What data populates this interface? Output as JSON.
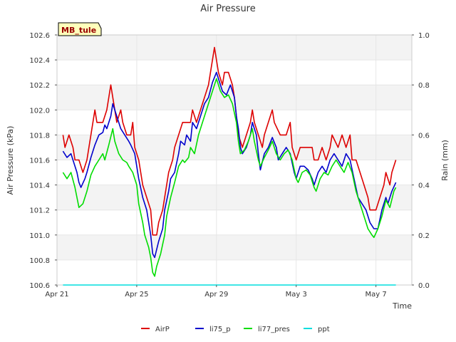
{
  "chart_data": {
    "type": "line",
    "title": "Air Pressure",
    "station_label": "MB_tule",
    "xlabel": "Time",
    "ylabel_left": "Air Pressure (kPa)",
    "ylabel_right": "Rain (mm)",
    "xlim": [
      0,
      17.8
    ],
    "ylim_left": [
      100.6,
      102.6
    ],
    "ylim_right": [
      0.0,
      1.0
    ],
    "x_ticks": [
      {
        "x": 0,
        "label": "Apr 21"
      },
      {
        "x": 4,
        "label": "Apr 25"
      },
      {
        "x": 8,
        "label": "Apr 29"
      },
      {
        "x": 12,
        "label": "May 3"
      },
      {
        "x": 16,
        "label": "May 7"
      }
    ],
    "y_ticks_left": [
      "100.6",
      "100.8",
      "101.0",
      "101.2",
      "101.4",
      "101.6",
      "101.8",
      "102.0",
      "102.2",
      "102.4",
      "102.6"
    ],
    "y_ticks_right": [
      "0.0",
      "0.2",
      "0.4",
      "0.6",
      "0.8",
      "1.0"
    ],
    "legend_position": "bottom-center",
    "series": [
      {
        "name": "AirP",
        "color": "#dd0000",
        "axis": "left",
        "points": [
          [
            0.3,
            101.8
          ],
          [
            0.4,
            101.7
          ],
          [
            0.6,
            101.8
          ],
          [
            0.8,
            101.7
          ],
          [
            0.9,
            101.6
          ],
          [
            1.1,
            101.6
          ],
          [
            1.3,
            101.5
          ],
          [
            1.5,
            101.6
          ],
          [
            1.6,
            101.7
          ],
          [
            1.8,
            101.9
          ],
          [
            1.9,
            102.0
          ],
          [
            2.0,
            101.9
          ],
          [
            2.3,
            101.9
          ],
          [
            2.5,
            102.0
          ],
          [
            2.6,
            102.1
          ],
          [
            2.7,
            102.2
          ],
          [
            2.8,
            102.1
          ],
          [
            3.0,
            101.9
          ],
          [
            3.2,
            102.0
          ],
          [
            3.3,
            101.9
          ],
          [
            3.5,
            101.8
          ],
          [
            3.7,
            101.8
          ],
          [
            3.8,
            101.9
          ],
          [
            3.9,
            101.7
          ],
          [
            4.1,
            101.6
          ],
          [
            4.2,
            101.5
          ],
          [
            4.3,
            101.4
          ],
          [
            4.5,
            101.3
          ],
          [
            4.7,
            101.2
          ],
          [
            4.8,
            101.0
          ],
          [
            5.0,
            101.0
          ],
          [
            5.1,
            101.1
          ],
          [
            5.3,
            101.2
          ],
          [
            5.4,
            101.3
          ],
          [
            5.6,
            101.5
          ],
          [
            5.8,
            101.6
          ],
          [
            5.9,
            101.7
          ],
          [
            6.1,
            101.8
          ],
          [
            6.3,
            101.9
          ],
          [
            6.5,
            101.9
          ],
          [
            6.7,
            101.9
          ],
          [
            6.8,
            102.0
          ],
          [
            7.0,
            101.9
          ],
          [
            7.2,
            102.0
          ],
          [
            7.4,
            102.1
          ],
          [
            7.6,
            102.2
          ],
          [
            7.7,
            102.3
          ],
          [
            7.8,
            102.4
          ],
          [
            7.9,
            102.5
          ],
          [
            8.1,
            102.3
          ],
          [
            8.3,
            102.2
          ],
          [
            8.4,
            102.3
          ],
          [
            8.6,
            102.3
          ],
          [
            8.8,
            102.2
          ],
          [
            8.9,
            102.1
          ],
          [
            9.1,
            101.8
          ],
          [
            9.3,
            101.7
          ],
          [
            9.5,
            101.8
          ],
          [
            9.7,
            101.9
          ],
          [
            9.8,
            102.0
          ],
          [
            9.9,
            101.9
          ],
          [
            10.1,
            101.8
          ],
          [
            10.3,
            101.7
          ],
          [
            10.4,
            101.8
          ],
          [
            10.6,
            101.9
          ],
          [
            10.8,
            102.0
          ],
          [
            10.9,
            101.9
          ],
          [
            11.2,
            101.8
          ],
          [
            11.5,
            101.8
          ],
          [
            11.7,
            101.9
          ],
          [
            11.8,
            101.7
          ],
          [
            12.0,
            101.6
          ],
          [
            12.2,
            101.7
          ],
          [
            12.5,
            101.7
          ],
          [
            12.8,
            101.7
          ],
          [
            12.9,
            101.6
          ],
          [
            13.1,
            101.6
          ],
          [
            13.3,
            101.7
          ],
          [
            13.5,
            101.6
          ],
          [
            13.7,
            101.7
          ],
          [
            13.8,
            101.8
          ],
          [
            14.1,
            101.7
          ],
          [
            14.3,
            101.8
          ],
          [
            14.5,
            101.7
          ],
          [
            14.7,
            101.8
          ],
          [
            14.8,
            101.6
          ],
          [
            15.0,
            101.6
          ],
          [
            15.2,
            101.5
          ],
          [
            15.4,
            101.4
          ],
          [
            15.6,
            101.3
          ],
          [
            15.7,
            101.2
          ],
          [
            15.9,
            101.2
          ],
          [
            16.0,
            101.2
          ],
          [
            16.2,
            101.3
          ],
          [
            16.4,
            101.4
          ],
          [
            16.5,
            101.5
          ],
          [
            16.7,
            101.4
          ],
          [
            16.8,
            101.5
          ],
          [
            17.0,
            101.6
          ]
        ]
      },
      {
        "name": "li75_p",
        "color": "#0000cc",
        "axis": "left",
        "points": [
          [
            0.3,
            101.67
          ],
          [
            0.5,
            101.62
          ],
          [
            0.7,
            101.65
          ],
          [
            0.9,
            101.55
          ],
          [
            1.0,
            101.5
          ],
          [
            1.1,
            101.42
          ],
          [
            1.2,
            101.38
          ],
          [
            1.4,
            101.45
          ],
          [
            1.5,
            101.5
          ],
          [
            1.7,
            101.62
          ],
          [
            1.9,
            101.72
          ],
          [
            2.1,
            101.8
          ],
          [
            2.3,
            101.82
          ],
          [
            2.4,
            101.88
          ],
          [
            2.5,
            101.85
          ],
          [
            2.7,
            101.95
          ],
          [
            2.8,
            102.05
          ],
          [
            3.0,
            101.95
          ],
          [
            3.2,
            101.85
          ],
          [
            3.4,
            101.8
          ],
          [
            3.6,
            101.75
          ],
          [
            3.7,
            101.72
          ],
          [
            3.9,
            101.65
          ],
          [
            4.1,
            101.45
          ],
          [
            4.3,
            101.3
          ],
          [
            4.5,
            101.2
          ],
          [
            4.6,
            101.1
          ],
          [
            4.7,
            101.0
          ],
          [
            4.8,
            100.85
          ],
          [
            4.9,
            100.82
          ],
          [
            5.1,
            100.95
          ],
          [
            5.3,
            101.05
          ],
          [
            5.4,
            101.2
          ],
          [
            5.6,
            101.35
          ],
          [
            5.7,
            101.45
          ],
          [
            5.9,
            101.5
          ],
          [
            6.1,
            101.65
          ],
          [
            6.2,
            101.75
          ],
          [
            6.4,
            101.72
          ],
          [
            6.5,
            101.8
          ],
          [
            6.7,
            101.75
          ],
          [
            6.8,
            101.9
          ],
          [
            7.0,
            101.85
          ],
          [
            7.2,
            101.95
          ],
          [
            7.4,
            102.05
          ],
          [
            7.6,
            102.1
          ],
          [
            7.8,
            102.22
          ],
          [
            8.0,
            102.3
          ],
          [
            8.1,
            102.25
          ],
          [
            8.3,
            102.15
          ],
          [
            8.5,
            102.12
          ],
          [
            8.7,
            102.2
          ],
          [
            8.9,
            102.1
          ],
          [
            9.0,
            101.95
          ],
          [
            9.1,
            101.85
          ],
          [
            9.2,
            101.7
          ],
          [
            9.3,
            101.65
          ],
          [
            9.5,
            101.7
          ],
          [
            9.7,
            101.8
          ],
          [
            9.8,
            101.9
          ],
          [
            10.0,
            101.8
          ],
          [
            10.1,
            101.65
          ],
          [
            10.2,
            101.52
          ],
          [
            10.4,
            101.65
          ],
          [
            10.6,
            101.7
          ],
          [
            10.8,
            101.78
          ],
          [
            11.0,
            101.7
          ],
          [
            11.1,
            101.6
          ],
          [
            11.3,
            101.65
          ],
          [
            11.5,
            101.7
          ],
          [
            11.7,
            101.65
          ],
          [
            11.9,
            101.5
          ],
          [
            12.0,
            101.45
          ],
          [
            12.2,
            101.55
          ],
          [
            12.4,
            101.55
          ],
          [
            12.6,
            101.52
          ],
          [
            12.8,
            101.45
          ],
          [
            12.9,
            101.4
          ],
          [
            13.1,
            101.5
          ],
          [
            13.3,
            101.55
          ],
          [
            13.5,
            101.5
          ],
          [
            13.7,
            101.6
          ],
          [
            13.9,
            101.65
          ],
          [
            14.1,
            101.6
          ],
          [
            14.3,
            101.55
          ],
          [
            14.5,
            101.65
          ],
          [
            14.7,
            101.6
          ],
          [
            14.9,
            101.45
          ],
          [
            15.1,
            101.3
          ],
          [
            15.3,
            101.25
          ],
          [
            15.5,
            101.2
          ],
          [
            15.7,
            101.1
          ],
          [
            15.9,
            101.05
          ],
          [
            16.1,
            101.05
          ],
          [
            16.3,
            101.2
          ],
          [
            16.5,
            101.3
          ],
          [
            16.6,
            101.25
          ],
          [
            16.8,
            101.35
          ],
          [
            17.0,
            101.42
          ]
        ]
      },
      {
        "name": "li77_pres",
        "color": "#00dd00",
        "axis": "left",
        "points": [
          [
            0.3,
            101.5
          ],
          [
            0.5,
            101.45
          ],
          [
            0.7,
            101.5
          ],
          [
            0.9,
            101.38
          ],
          [
            1.0,
            101.3
          ],
          [
            1.1,
            101.22
          ],
          [
            1.3,
            101.25
          ],
          [
            1.5,
            101.35
          ],
          [
            1.7,
            101.48
          ],
          [
            1.9,
            101.55
          ],
          [
            2.1,
            101.6
          ],
          [
            2.3,
            101.65
          ],
          [
            2.4,
            101.6
          ],
          [
            2.6,
            101.72
          ],
          [
            2.8,
            101.85
          ],
          [
            2.9,
            101.75
          ],
          [
            3.1,
            101.65
          ],
          [
            3.3,
            101.6
          ],
          [
            3.5,
            101.58
          ],
          [
            3.6,
            101.55
          ],
          [
            3.8,
            101.5
          ],
          [
            4.0,
            101.4
          ],
          [
            4.1,
            101.25
          ],
          [
            4.3,
            101.1
          ],
          [
            4.4,
            101.0
          ],
          [
            4.6,
            100.9
          ],
          [
            4.7,
            100.82
          ],
          [
            4.8,
            100.7
          ],
          [
            4.9,
            100.67
          ],
          [
            5.0,
            100.75
          ],
          [
            5.2,
            100.85
          ],
          [
            5.4,
            101.0
          ],
          [
            5.5,
            101.15
          ],
          [
            5.7,
            101.3
          ],
          [
            5.9,
            101.42
          ],
          [
            6.1,
            101.55
          ],
          [
            6.3,
            101.6
          ],
          [
            6.4,
            101.58
          ],
          [
            6.6,
            101.62
          ],
          [
            6.7,
            101.7
          ],
          [
            6.9,
            101.65
          ],
          [
            7.1,
            101.8
          ],
          [
            7.3,
            101.9
          ],
          [
            7.5,
            102.0
          ],
          [
            7.7,
            102.1
          ],
          [
            7.9,
            102.2
          ],
          [
            8.0,
            102.25
          ],
          [
            8.2,
            102.15
          ],
          [
            8.4,
            102.1
          ],
          [
            8.6,
            102.12
          ],
          [
            8.8,
            102.05
          ],
          [
            9.0,
            101.9
          ],
          [
            9.1,
            101.75
          ],
          [
            9.2,
            101.65
          ],
          [
            9.4,
            101.68
          ],
          [
            9.6,
            101.75
          ],
          [
            9.8,
            101.85
          ],
          [
            9.9,
            101.75
          ],
          [
            10.1,
            101.6
          ],
          [
            10.2,
            101.55
          ],
          [
            10.4,
            101.62
          ],
          [
            10.6,
            101.68
          ],
          [
            10.8,
            101.75
          ],
          [
            11.0,
            101.65
          ],
          [
            11.2,
            101.6
          ],
          [
            11.4,
            101.65
          ],
          [
            11.6,
            101.68
          ],
          [
            11.8,
            101.6
          ],
          [
            12.0,
            101.45
          ],
          [
            12.1,
            101.42
          ],
          [
            12.3,
            101.5
          ],
          [
            12.5,
            101.52
          ],
          [
            12.7,
            101.48
          ],
          [
            12.9,
            101.38
          ],
          [
            13.0,
            101.35
          ],
          [
            13.2,
            101.45
          ],
          [
            13.4,
            101.5
          ],
          [
            13.6,
            101.48
          ],
          [
            13.8,
            101.55
          ],
          [
            14.0,
            101.6
          ],
          [
            14.2,
            101.55
          ],
          [
            14.4,
            101.5
          ],
          [
            14.6,
            101.58
          ],
          [
            14.8,
            101.5
          ],
          [
            15.0,
            101.35
          ],
          [
            15.2,
            101.25
          ],
          [
            15.4,
            101.15
          ],
          [
            15.6,
            101.05
          ],
          [
            15.8,
            101.0
          ],
          [
            15.9,
            100.98
          ],
          [
            16.1,
            101.05
          ],
          [
            16.3,
            101.15
          ],
          [
            16.5,
            101.28
          ],
          [
            16.7,
            101.22
          ],
          [
            16.9,
            101.35
          ],
          [
            17.0,
            101.38
          ]
        ]
      },
      {
        "name": "ppt",
        "color": "#00dddd",
        "axis": "right",
        "points": [
          [
            0.3,
            0.0
          ],
          [
            17.0,
            0.0
          ]
        ]
      }
    ]
  }
}
